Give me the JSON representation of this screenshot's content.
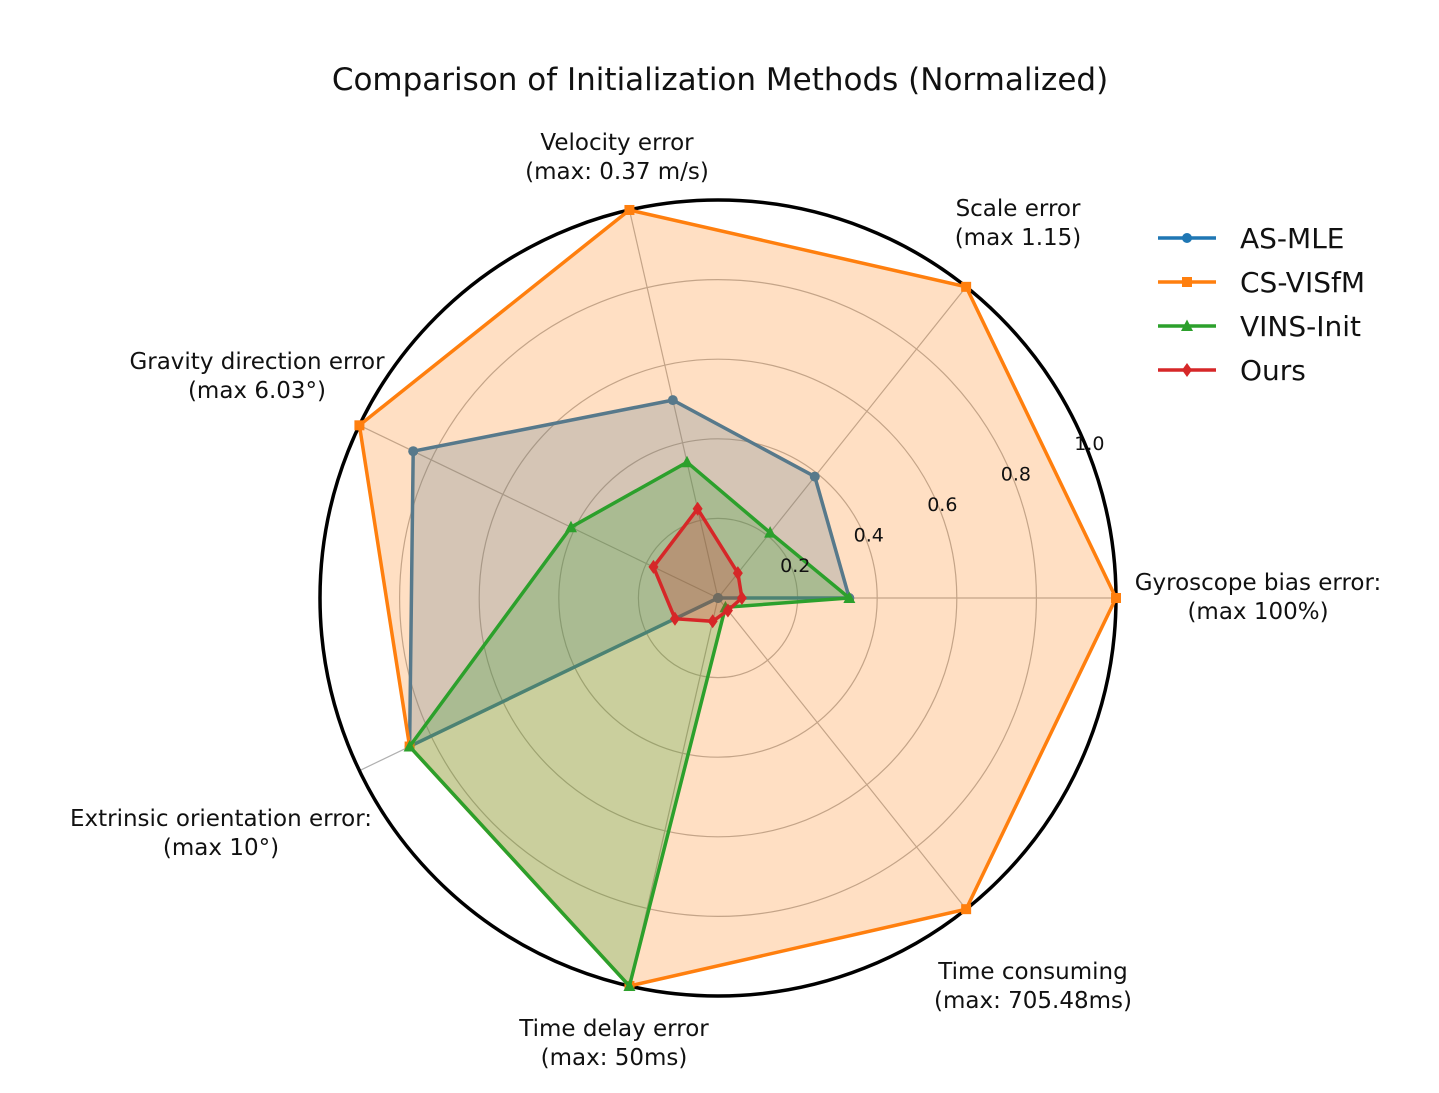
{
  "chart_data": {
    "type": "radar",
    "title": "Comparison of Initialization Methods (Normalized)",
    "axes": [
      {
        "line1": "Gyroscope bias error:",
        "line2": "(max 100%)"
      },
      {
        "line1": "Scale error",
        "line2": "(max 1.15)"
      },
      {
        "line1": "Velocity error",
        "line2": "(max: 0.37 m/s)"
      },
      {
        "line1": "Gravity direction error",
        "line2": "(max 6.03°)"
      },
      {
        "line1": "Extrinsic orientation error:",
        "line2": "(max 10°)"
      },
      {
        "line1": "Time delay error",
        "line2": "(max: 50ms)"
      },
      {
        "line1": "Time consuming",
        "line2": "(max: 705.48ms)"
      }
    ],
    "rlim": [
      0,
      1.0
    ],
    "radial_ticks": [
      0.2,
      0.4,
      0.6,
      0.8,
      1.0
    ],
    "radial_tick_labels": [
      "0.2",
      "0.4",
      "0.6",
      "0.8",
      "1.0"
    ],
    "grid": true,
    "legend_position": "top-right",
    "series": [
      {
        "name": "AS-MLE",
        "color": "#1f77b4",
        "marker": "circle",
        "fill": true,
        "values": [
          0.33,
          0.39,
          0.51,
          0.85,
          0.86,
          0.0,
          0.0
        ]
      },
      {
        "name": "CS-VISfM",
        "color": "#ff7f0e",
        "marker": "square",
        "fill": true,
        "values": [
          1.0,
          1.0,
          1.0,
          1.0,
          0.86,
          1.0,
          1.0
        ]
      },
      {
        "name": "VINS-Init",
        "color": "#2ca02c",
        "marker": "triangle",
        "fill": true,
        "values": [
          0.33,
          0.21,
          0.35,
          0.41,
          0.86,
          1.0,
          0.03
        ]
      },
      {
        "name": "Ours",
        "color": "#d62728",
        "marker": "diamond",
        "fill": true,
        "values": [
          0.06,
          0.08,
          0.23,
          0.18,
          0.12,
          0.06,
          0.04
        ]
      }
    ]
  }
}
